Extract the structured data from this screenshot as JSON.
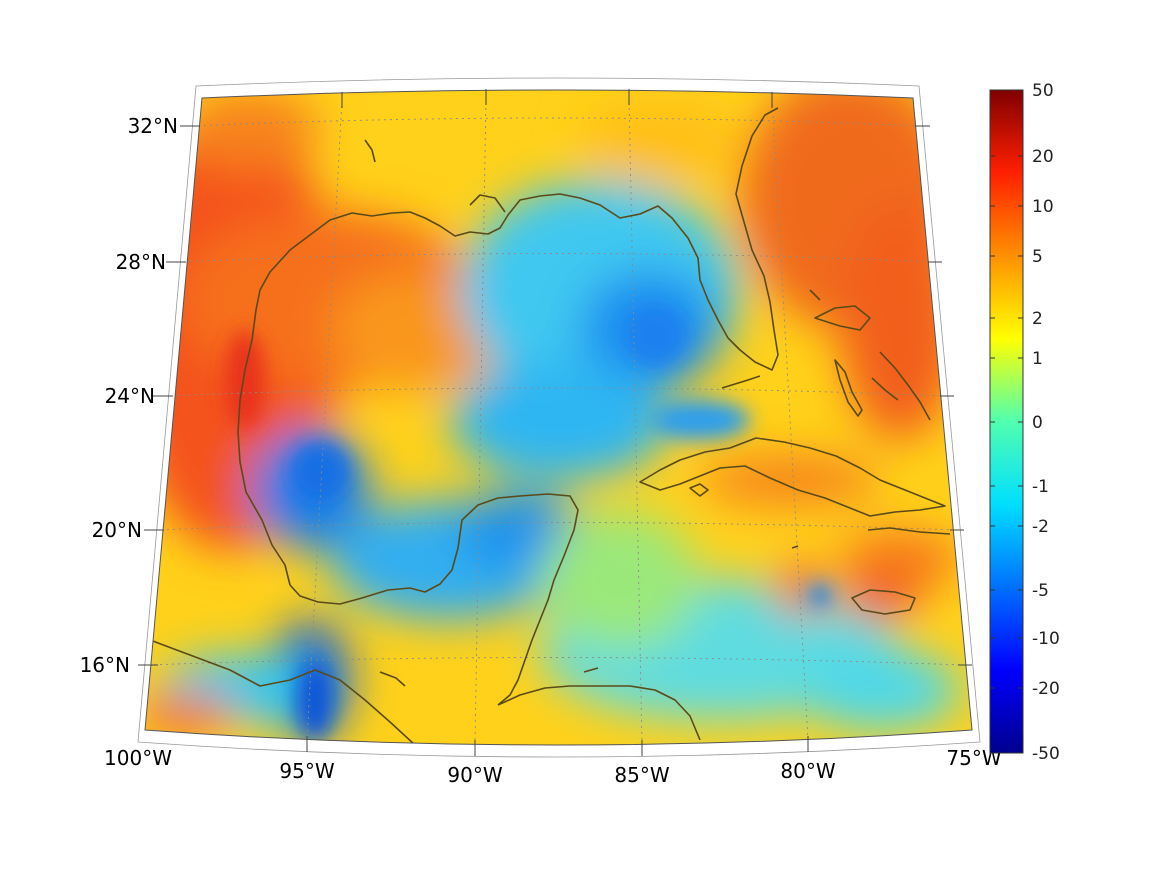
{
  "map": {
    "projection": "conic",
    "lon_range": [
      -100,
      -75
    ],
    "lat_range": [
      14,
      33
    ],
    "longitude_ticks": [
      "100°W",
      "95°W",
      "90°W",
      "85°W",
      "80°W",
      "75°W"
    ],
    "latitude_ticks": [
      "16°N",
      "20°N",
      "24°N",
      "28°N",
      "32°N"
    ],
    "grid": true,
    "coastline_color": "#5a4a1a",
    "field_description_colors": {
      "high": "#e8401a",
      "mid": "#f6e21f",
      "low": "#1f8ff0"
    }
  },
  "colorbar": {
    "tick_labels": [
      "50",
      "20",
      "10",
      "5",
      "2",
      "1",
      "0",
      "-1",
      "-2",
      "-5",
      "-10",
      "-20",
      "-50"
    ],
    "range": [
      -50,
      50
    ],
    "colormap": "jet",
    "placement": "right"
  }
}
